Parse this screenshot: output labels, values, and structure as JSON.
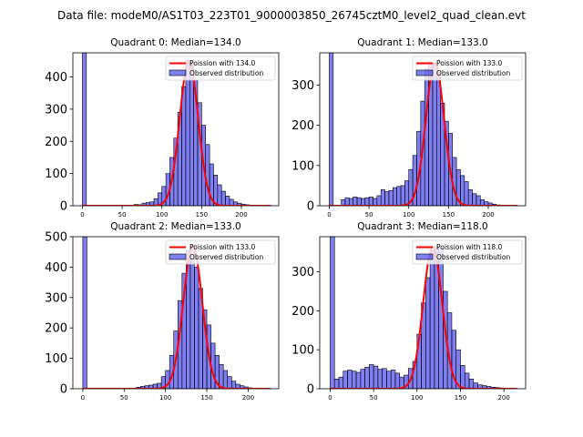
{
  "chart_data": {
    "suptitle": "Data file: modeM0/AS1T03_223T01_9000003850_26745cztM0_level2_quad_clean.evt",
    "panels": [
      {
        "title": "Quadrant 0: Median=134.0",
        "type": "bar",
        "xlim": [
          -12,
          247
        ],
        "ylim": [
          0,
          475
        ],
        "xticks": [
          0,
          50,
          100,
          150,
          200
        ],
        "yticks": [
          0,
          100,
          200,
          300,
          400
        ],
        "legend": {
          "curve": "Poission with 134.0",
          "hist": "Observed distribution",
          "loc": "top-right"
        },
        "bin_width": 5,
        "bin_starts": [
          0,
          5,
          10,
          15,
          20,
          25,
          30,
          35,
          40,
          45,
          50,
          55,
          60,
          65,
          70,
          75,
          80,
          85,
          90,
          95,
          100,
          105,
          110,
          115,
          120,
          125,
          130,
          135,
          140,
          145,
          150,
          155,
          160,
          165,
          170,
          175,
          180,
          185,
          190,
          195,
          200,
          205,
          210,
          215,
          220,
          225,
          230
        ],
        "counts": [
          475,
          0,
          0,
          0,
          0,
          0,
          0,
          0,
          0,
          0,
          0,
          0,
          2,
          4,
          3,
          8,
          10,
          12,
          22,
          40,
          60,
          100,
          150,
          210,
          290,
          370,
          450,
          440,
          390,
          320,
          250,
          190,
          130,
          95,
          65,
          45,
          30,
          20,
          12,
          8,
          5,
          3,
          2,
          1,
          1,
          1,
          0
        ],
        "curve": {
          "mean": 134,
          "peak": 450,
          "sigma": 11.6
        }
      },
      {
        "title": "Quadrant 1: Median=133.0",
        "type": "bar",
        "xlim": [
          -12,
          247
        ],
        "ylim": [
          0,
          380
        ],
        "xticks": [
          0,
          50,
          100,
          150,
          200
        ],
        "yticks": [
          0,
          100,
          200,
          300
        ],
        "legend": {
          "curve": "Poission with 133.0",
          "hist": "Observed distribution",
          "loc": "top-right"
        },
        "bin_width": 5,
        "bin_starts": [
          0,
          5,
          10,
          15,
          20,
          25,
          30,
          35,
          40,
          45,
          50,
          55,
          60,
          65,
          70,
          75,
          80,
          85,
          90,
          95,
          100,
          105,
          110,
          115,
          120,
          125,
          130,
          135,
          140,
          145,
          150,
          155,
          160,
          165,
          170,
          175,
          180,
          185,
          190,
          195,
          200,
          205,
          210,
          215,
          220,
          225,
          230
        ],
        "counts": [
          380,
          0,
          0,
          15,
          20,
          18,
          22,
          20,
          18,
          20,
          22,
          18,
          25,
          40,
          35,
          38,
          45,
          48,
          50,
          62,
          90,
          125,
          185,
          260,
          340,
          355,
          355,
          330,
          255,
          210,
          180,
          120,
          90,
          75,
          60,
          40,
          30,
          25,
          15,
          10,
          7,
          4,
          2,
          1,
          1,
          1,
          0
        ],
        "curve": {
          "mean": 133,
          "peak": 355,
          "sigma": 11.5
        }
      },
      {
        "title": "Quadrant 2: Median=133.0",
        "type": "bar",
        "xlim": [
          -12,
          237
        ],
        "ylim": [
          0,
          500
        ],
        "xticks": [
          0,
          50,
          100,
          150,
          200
        ],
        "yticks": [
          0,
          100,
          200,
          300,
          400,
          500
        ],
        "legend": {
          "curve": "Poission with 133.0",
          "hist": "Observed distribution",
          "loc": "top-right"
        },
        "bin_width": 5,
        "bin_starts": [
          0,
          5,
          10,
          15,
          20,
          25,
          30,
          35,
          40,
          45,
          50,
          55,
          60,
          65,
          70,
          75,
          80,
          85,
          90,
          95,
          100,
          105,
          110,
          115,
          120,
          125,
          130,
          135,
          140,
          145,
          150,
          155,
          160,
          165,
          170,
          175,
          180,
          185,
          190,
          195,
          200,
          205,
          210,
          215,
          220,
          225
        ],
        "counts": [
          500,
          0,
          0,
          0,
          0,
          0,
          0,
          0,
          0,
          0,
          0,
          0,
          2,
          5,
          8,
          10,
          12,
          15,
          18,
          40,
          60,
          110,
          190,
          290,
          380,
          455,
          470,
          400,
          330,
          260,
          210,
          150,
          110,
          80,
          60,
          40,
          25,
          15,
          10,
          6,
          3,
          2,
          1,
          1,
          1,
          0
        ],
        "curve": {
          "mean": 133,
          "peak": 470,
          "sigma": 11.5
        }
      },
      {
        "title": "Quadrant 3: Median=118.0",
        "type": "bar",
        "xlim": [
          -12,
          225
        ],
        "ylim": [
          0,
          390
        ],
        "xticks": [
          0,
          50,
          100,
          150,
          200
        ],
        "yticks": [
          0,
          100,
          200,
          300
        ],
        "legend": {
          "curve": "Poission with 118.0",
          "hist": "Observed distribution",
          "loc": "top-right"
        },
        "bin_width": 5,
        "bin_starts": [
          0,
          5,
          10,
          15,
          20,
          25,
          30,
          35,
          40,
          45,
          50,
          55,
          60,
          65,
          70,
          75,
          80,
          85,
          90,
          95,
          100,
          105,
          110,
          115,
          120,
          125,
          130,
          135,
          140,
          145,
          150,
          155,
          160,
          165,
          170,
          175,
          180,
          185,
          190,
          195,
          200,
          205,
          210
        ],
        "counts": [
          390,
          25,
          30,
          45,
          48,
          45,
          42,
          50,
          55,
          62,
          58,
          50,
          52,
          45,
          48,
          40,
          30,
          35,
          52,
          70,
          140,
          220,
          285,
          355,
          365,
          360,
          250,
          195,
          150,
          100,
          60,
          40,
          25,
          15,
          10,
          8,
          6,
          4,
          3,
          2,
          1,
          1,
          0
        ],
        "curve": {
          "mean": 118,
          "peak": 365,
          "sigma": 10.9
        }
      }
    ]
  }
}
